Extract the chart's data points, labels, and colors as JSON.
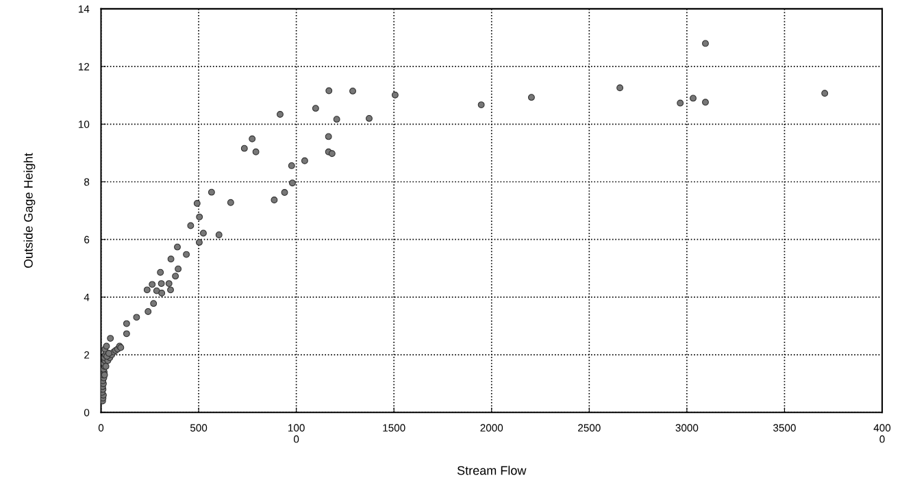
{
  "chart_data": {
    "type": "scatter",
    "xlabel": "Stream Flow",
    "ylabel": "Outside Gage Height",
    "xlim": [
      0,
      4000
    ],
    "ylim": [
      0,
      14
    ],
    "xticks": [
      0,
      500,
      {
        "value": 1000,
        "label": "100\n0"
      },
      1500,
      2000,
      2500,
      3000,
      3500,
      {
        "value": 4000,
        "label": "400\n0"
      }
    ],
    "yticks": [
      0,
      2,
      4,
      6,
      8,
      10,
      12,
      14
    ],
    "grid": true,
    "legend": false,
    "marker": "circle",
    "series": [
      {
        "color": "#777777",
        "x": [
          8,
          10,
          12,
          6,
          10,
          8,
          12,
          9,
          14,
          11,
          16,
          13,
          18,
          15,
          20,
          17,
          22,
          25,
          20,
          28,
          35,
          45,
          55,
          65,
          75,
          85,
          95,
          101,
          30,
          40,
          25,
          18,
          48,
          131,
          131,
          182,
          241,
          269,
          236,
          285,
          311,
          356,
          262,
          309,
          348,
          304,
          381,
          395,
          358,
          437,
          391,
          503,
          524,
          604,
          459,
          504,
          492,
          566,
          664,
          734,
          774,
          793,
          887,
          940,
          980,
          976,
          1043,
          1165,
          1183,
          1165,
          917,
          1099,
          1167,
          1207,
          1289,
          1373,
          1506,
          1947,
          2204,
          2657,
          2966,
          3032,
          3095,
          3095,
          3706
        ],
        "values": [
          0.4,
          0.5,
          0.6,
          0.7,
          0.8,
          0.9,
          1.0,
          1.1,
          1.2,
          1.3,
          1.4,
          1.5,
          1.6,
          1.7,
          1.8,
          1.9,
          2.0,
          2.1,
          2.2,
          2.3,
          1.8,
          1.9,
          2.0,
          2.1,
          2.15,
          2.2,
          2.3,
          2.25,
          1.95,
          2.05,
          1.6,
          1.3,
          2.57,
          2.73,
          3.08,
          3.3,
          3.5,
          3.78,
          4.25,
          4.22,
          4.14,
          4.25,
          4.44,
          4.47,
          4.47,
          4.86,
          4.73,
          4.98,
          5.32,
          5.48,
          5.74,
          5.9,
          6.22,
          6.16,
          6.48,
          6.78,
          7.25,
          7.64,
          7.28,
          9.16,
          9.49,
          9.04,
          7.37,
          7.63,
          7.96,
          8.56,
          8.73,
          9.04,
          8.98,
          9.57,
          10.34,
          10.55,
          11.16,
          10.17,
          11.15,
          10.2,
          11.01,
          10.67,
          10.93,
          11.26,
          10.73,
          10.9,
          10.76,
          12.8,
          11.07
        ]
      }
    ]
  }
}
